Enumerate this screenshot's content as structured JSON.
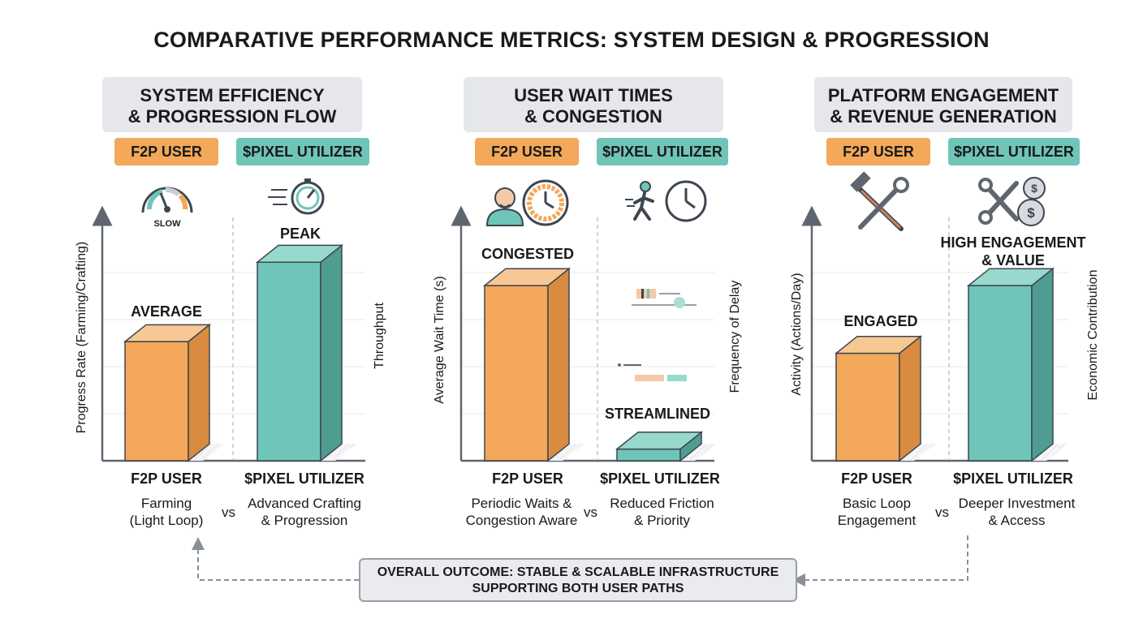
{
  "title": "COMPARATIVE PERFORMANCE METRICS: SYSTEM DESIGN & PROGRESSION",
  "colors": {
    "f2p": "#f3a85a",
    "pixel": "#6fc5b8",
    "f2p_dark": "#d98c40",
    "pixel_dark": "#4f9d90",
    "f2p_top": "#f8c894",
    "pixel_top": "#98d9cd"
  },
  "chart_data": [
    {
      "type": "bar",
      "title": "SYSTEM EFFICIENCY & PROGRESSION FLOW",
      "title_lines": [
        "SYSTEM EFFICIENCY",
        "& PROGRESSION FLOW"
      ],
      "legend": [
        "F2P USER",
        "$PIXEL UTILIZER"
      ],
      "ylabel": "Progress Rate (Farming/Crafting)",
      "ylabel_right": "Throughput",
      "ylim": [
        0,
        100
      ],
      "categories": [
        "F2P USER",
        "$PIXEL UTILIZER"
      ],
      "values": [
        51,
        85
      ],
      "bar_labels": [
        "AVERAGE",
        "PEAK"
      ],
      "icon_text": "SLOW",
      "descriptions": [
        [
          "Farming",
          "(Light Loop)"
        ],
        [
          "Advanced Crafting",
          "& Progression"
        ]
      ],
      "vs": "vs"
    },
    {
      "type": "bar",
      "title": "USER WAIT TIMES & CONGESTION",
      "title_lines": [
        "USER WAIT TIMES",
        "& CONGESTION"
      ],
      "legend": [
        "F2P USER",
        "$PIXEL UTILIZER"
      ],
      "ylabel": "Average Wait Time (s)",
      "ylabel_right": "Frequency of Delay",
      "ylim": [
        0,
        100
      ],
      "categories": [
        "F2P USER",
        "$PIXEL UTILIZER"
      ],
      "values": [
        75,
        5
      ],
      "bar_labels": [
        "CONGESTED",
        "STREAMLINED"
      ],
      "descriptions": [
        [
          "Periodic Waits &",
          "Congestion Aware"
        ],
        [
          "Reduced Friction",
          "& Priority"
        ]
      ],
      "vs": "vs"
    },
    {
      "type": "bar",
      "title": "PLATFORM ENGAGEMENT & REVENUE GENERATION",
      "title_lines": [
        "PLATFORM ENGAGEMENT",
        "& REVENUE GENERATION"
      ],
      "legend": [
        "F2P USER",
        "$PIXEL UTILIZER"
      ],
      "ylabel": "Activity (Actions/Day)",
      "ylabel_right": "Economic Contribution",
      "ylim": [
        0,
        100
      ],
      "categories": [
        "F2P USER",
        "$PIXEL UTILIZER"
      ],
      "values": [
        46,
        75
      ],
      "bar_labels": [
        "ENGAGED",
        "HIGH ENGAGEMENT\n& VALUE"
      ],
      "descriptions": [
        [
          "Basic Loop",
          "Engagement"
        ],
        [
          "Deeper Investment",
          "& Access"
        ]
      ],
      "vs": "vs"
    }
  ],
  "outcome": [
    "OVERALL OUTCOME: STABLE & SCALABLE INFRASTRUCTURE",
    "SUPPORTING BOTH USER PATHS"
  ]
}
